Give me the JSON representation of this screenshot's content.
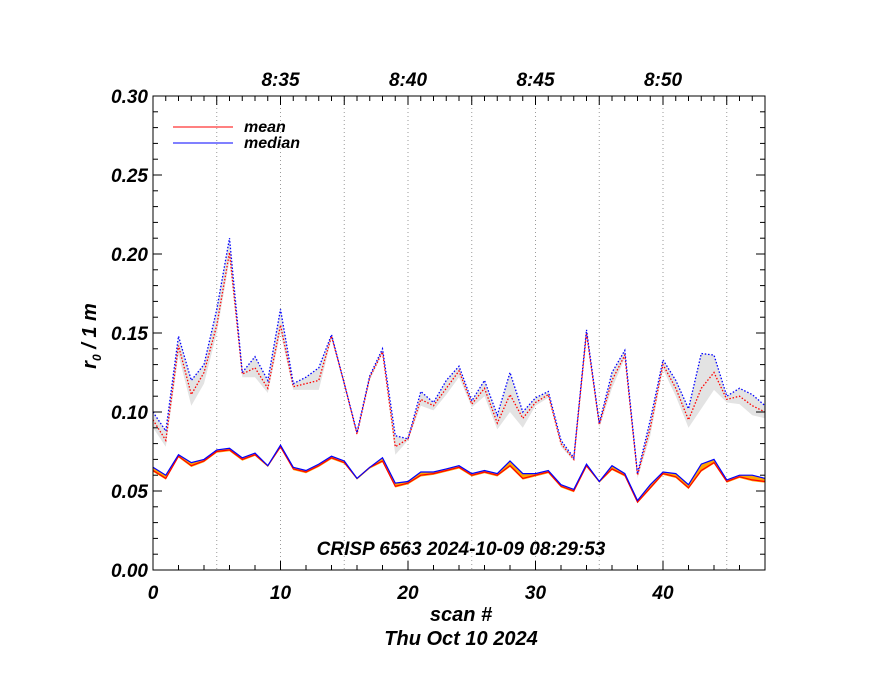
{
  "chart_data": {
    "type": "line",
    "title": "",
    "annotation": "CRISP 6563 2024-10-09 08:29:53",
    "xlabel": "scan #",
    "xlabel2": "Thu Oct 10 2024",
    "ylabel_main": "r",
    "ylabel_sub": "0",
    "ylabel_rest": " / 1 m",
    "xlim": [
      0,
      48
    ],
    "ylim": [
      0.0,
      0.3
    ],
    "x_ticks": [
      0,
      10,
      20,
      30,
      40
    ],
    "x_tick_labels": [
      "0",
      "10",
      "20",
      "30",
      "40"
    ],
    "y_ticks": [
      0.0,
      0.05,
      0.1,
      0.15,
      0.2,
      0.25,
      0.3
    ],
    "y_tick_labels": [
      "0.00",
      "0.05",
      "0.10",
      "0.15",
      "0.20",
      "0.25",
      "0.30"
    ],
    "time_ticks": [
      {
        "x": 10,
        "label": "8:35"
      },
      {
        "x": 20,
        "label": "8:40"
      },
      {
        "x": 30,
        "label": "8:45"
      },
      {
        "x": 40,
        "label": "8:50"
      }
    ],
    "time_gridlines": [
      5,
      10,
      15,
      20,
      25,
      30,
      35,
      40,
      45
    ],
    "legend": {
      "position": "top-left",
      "entries": [
        {
          "label": "mean",
          "color": "#ff0000"
        },
        {
          "label": "median",
          "color": "#0000ff"
        }
      ]
    },
    "colors": {
      "mean": "#ff0000",
      "median": "#0000ff",
      "band": "#e3e3e3",
      "band_lower": "#ffa500"
    },
    "x": [
      0,
      1,
      2,
      3,
      4,
      5,
      6,
      7,
      8,
      9,
      10,
      11,
      12,
      13,
      14,
      15,
      16,
      17,
      18,
      19,
      20,
      21,
      22,
      23,
      24,
      25,
      26,
      27,
      28,
      29,
      30,
      31,
      32,
      33,
      34,
      35,
      36,
      37,
      38,
      39,
      40,
      41,
      42,
      43,
      44,
      45,
      46,
      47,
      48
    ],
    "series": [
      {
        "name": "mean (upper, dotted)",
        "style": "dotted",
        "color": "#ff0000",
        "values": [
          0.095,
          0.082,
          0.142,
          0.111,
          0.125,
          0.155,
          0.201,
          0.124,
          0.128,
          0.115,
          0.155,
          0.116,
          0.118,
          0.12,
          0.148,
          0.118,
          0.086,
          0.122,
          0.138,
          0.078,
          0.083,
          0.108,
          0.104,
          0.115,
          0.126,
          0.105,
          0.115,
          0.093,
          0.111,
          0.096,
          0.106,
          0.111,
          0.08,
          0.07,
          0.15,
          0.092,
          0.12,
          0.136,
          0.06,
          0.09,
          0.13,
          0.115,
          0.095,
          0.115,
          0.125,
          0.108,
          0.11,
          0.104,
          0.1
        ]
      },
      {
        "name": "median (upper, dotted)",
        "style": "dotted",
        "color": "#0000ff",
        "values": [
          0.1,
          0.088,
          0.148,
          0.12,
          0.13,
          0.165,
          0.21,
          0.125,
          0.135,
          0.12,
          0.165,
          0.118,
          0.122,
          0.128,
          0.149,
          0.118,
          0.087,
          0.123,
          0.14,
          0.085,
          0.083,
          0.113,
          0.106,
          0.12,
          0.129,
          0.107,
          0.12,
          0.098,
          0.125,
          0.1,
          0.109,
          0.113,
          0.082,
          0.071,
          0.152,
          0.093,
          0.125,
          0.139,
          0.061,
          0.095,
          0.133,
          0.12,
          0.102,
          0.137,
          0.136,
          0.11,
          0.115,
          0.111,
          0.104
        ]
      },
      {
        "name": "mean",
        "style": "solid",
        "color": "#ff0000",
        "values": [
          0.063,
          0.058,
          0.072,
          0.066,
          0.069,
          0.075,
          0.076,
          0.07,
          0.073,
          0.066,
          0.078,
          0.064,
          0.062,
          0.066,
          0.071,
          0.068,
          0.058,
          0.065,
          0.069,
          0.053,
          0.055,
          0.06,
          0.061,
          0.063,
          0.065,
          0.06,
          0.062,
          0.06,
          0.066,
          0.058,
          0.06,
          0.062,
          0.053,
          0.05,
          0.066,
          0.056,
          0.064,
          0.06,
          0.043,
          0.052,
          0.061,
          0.059,
          0.052,
          0.063,
          0.068,
          0.056,
          0.059,
          0.057,
          0.056
        ]
      },
      {
        "name": "median",
        "style": "solid",
        "color": "#0000ff",
        "values": [
          0.065,
          0.06,
          0.073,
          0.068,
          0.07,
          0.076,
          0.077,
          0.071,
          0.074,
          0.066,
          0.079,
          0.065,
          0.063,
          0.067,
          0.072,
          0.069,
          0.058,
          0.065,
          0.071,
          0.055,
          0.056,
          0.062,
          0.062,
          0.064,
          0.066,
          0.061,
          0.063,
          0.061,
          0.069,
          0.061,
          0.061,
          0.063,
          0.054,
          0.051,
          0.067,
          0.056,
          0.066,
          0.061,
          0.044,
          0.054,
          0.062,
          0.061,
          0.054,
          0.067,
          0.07,
          0.057,
          0.06,
          0.06,
          0.058
        ]
      }
    ],
    "band_upper": {
      "lower": [
        0.09,
        0.078,
        0.136,
        0.104,
        0.118,
        0.15,
        0.196,
        0.122,
        0.122,
        0.112,
        0.15,
        0.114,
        0.114,
        0.114,
        0.146,
        0.117,
        0.085,
        0.12,
        0.137,
        0.073,
        0.082,
        0.104,
        0.101,
        0.111,
        0.122,
        0.103,
        0.11,
        0.089,
        0.1,
        0.09,
        0.104,
        0.109,
        0.078,
        0.069,
        0.148,
        0.09,
        0.115,
        0.134,
        0.058,
        0.085,
        0.127,
        0.11,
        0.09,
        0.102,
        0.114,
        0.106,
        0.105,
        0.098,
        0.096
      ],
      "upper": [
        0.1,
        0.088,
        0.148,
        0.12,
        0.13,
        0.165,
        0.21,
        0.125,
        0.135,
        0.12,
        0.165,
        0.118,
        0.122,
        0.128,
        0.149,
        0.118,
        0.087,
        0.123,
        0.14,
        0.085,
        0.083,
        0.113,
        0.106,
        0.12,
        0.129,
        0.107,
        0.12,
        0.098,
        0.125,
        0.1,
        0.109,
        0.113,
        0.082,
        0.071,
        0.152,
        0.093,
        0.125,
        0.139,
        0.061,
        0.095,
        0.133,
        0.12,
        0.102,
        0.137,
        0.136,
        0.11,
        0.115,
        0.111,
        0.104
      ]
    }
  }
}
